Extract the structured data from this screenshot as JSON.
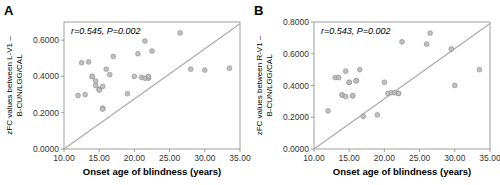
{
  "chart_data": [
    {
      "type": "scatter",
      "title": "A",
      "x_label": "Onset age of blindness (years)",
      "y_label": "zFC values between L-V1 –\nB-CUN/LGG/CAL",
      "annotation": "r=0.545, P=0.002",
      "xlim": [
        10,
        35
      ],
      "ylim": [
        0,
        0.7
      ],
      "xticks": [
        {
          "value": 10,
          "label": "10.00"
        },
        {
          "value": 15,
          "label": "15.00"
        },
        {
          "value": 20,
          "label": "20.00"
        },
        {
          "value": 25,
          "label": "25.00"
        },
        {
          "value": 30,
          "label": "30.00"
        },
        {
          "value": 35,
          "label": "35.00"
        }
      ],
      "yticks": [
        {
          "value": 0,
          "label": "0.0000"
        },
        {
          "value": 0.2,
          "label": "0.2000"
        },
        {
          "value": 0.4,
          "label": "0.4000"
        },
        {
          "value": 0.6,
          "label": "0.6000"
        }
      ],
      "series": [
        {
          "type": "scatter",
          "color": "#c0c0c0",
          "x": [
            12.0,
            12.5,
            13.0,
            13.5,
            14.0,
            14.0,
            14.5,
            14.5,
            15.0,
            15.0,
            15.5,
            15.5,
            15.5,
            16.0,
            16.5,
            17.0,
            19.0,
            20.0,
            20.5,
            21.0,
            21.5,
            21.5,
            22.0,
            22.0,
            22.5,
            26.5,
            28.0,
            30.0,
            33.5
          ],
          "values": [
            0.295,
            0.475,
            0.3,
            0.48,
            0.4,
            0.4,
            0.35,
            0.375,
            0.33,
            0.325,
            0.345,
            0.225,
            0.22,
            0.44,
            0.41,
            0.51,
            0.305,
            0.4,
            0.525,
            0.395,
            0.39,
            0.595,
            0.39,
            0.4,
            0.54,
            0.64,
            0.44,
            0.435,
            0.445
          ]
        },
        {
          "type": "line",
          "color": "#aaaaaa",
          "x": [
            10,
            35
          ],
          "values": [
            0.0,
            0.69
          ]
        }
      ]
    },
    {
      "type": "scatter",
      "title": "B",
      "x_label": "Onset age of blindness (years)",
      "y_label": "zFC values between R-V1 –\nB-CUN/LGG/CAL",
      "annotation": "r=0.543, P=0.002",
      "xlim": [
        10,
        35
      ],
      "ylim": [
        0,
        0.8
      ],
      "xticks": [
        {
          "value": 10,
          "label": "10.00"
        },
        {
          "value": 15,
          "label": "15.00"
        },
        {
          "value": 20,
          "label": "20.00"
        },
        {
          "value": 25,
          "label": "25.00"
        },
        {
          "value": 30,
          "label": "30.00"
        },
        {
          "value": 35,
          "label": "35.00"
        }
      ],
      "yticks": [
        {
          "value": 0,
          "label": "0.0000"
        },
        {
          "value": 0.2,
          "label": "0.2000"
        },
        {
          "value": 0.4,
          "label": "0.4000"
        },
        {
          "value": 0.6,
          "label": "0.6000"
        },
        {
          "value": 0.8,
          "label": "0.8000"
        }
      ],
      "series": [
        {
          "type": "scatter",
          "color": "#c0c0c0",
          "x": [
            12.0,
            13.0,
            13.5,
            14.0,
            14.0,
            14.5,
            14.5,
            15.0,
            15.0,
            15.5,
            15.5,
            16.0,
            16.0,
            16.5,
            17.0,
            19.0,
            20.0,
            20.5,
            21.0,
            21.5,
            22.0,
            22.0,
            22.5,
            26.0,
            26.5,
            29.5,
            30.0,
            33.5
          ],
          "values": [
            0.24,
            0.45,
            0.45,
            0.34,
            0.34,
            0.33,
            0.49,
            0.42,
            0.42,
            0.335,
            0.335,
            0.43,
            0.43,
            0.5,
            0.205,
            0.215,
            0.42,
            0.35,
            0.355,
            0.355,
            0.35,
            0.35,
            0.675,
            0.66,
            0.73,
            0.63,
            0.4,
            0.5
          ]
        },
        {
          "type": "line",
          "color": "#aaaaaa",
          "x": [
            10,
            35
          ],
          "values": [
            0.0,
            0.79
          ]
        }
      ]
    }
  ]
}
